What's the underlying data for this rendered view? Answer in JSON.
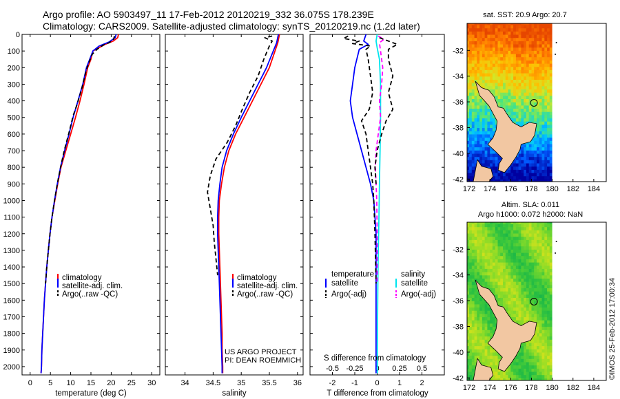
{
  "header": {
    "line1": "Argo profile: AO 5903497_11 17-Feb-2012 20120219_332 36.075S 178.239E",
    "line2": "Climatology: CARS2009. Satellite-adjusted climatology: synTS_20120219.nc (1.2d later)"
  },
  "side_credit": "©IMOS 25-Feb-2012 17:00:34",
  "colors": {
    "climatology": "#ff0000",
    "satellite": "#0000ff",
    "argo": "#000000",
    "sal_satellite": "#00e5ee",
    "sal_argo": "#ff00ff",
    "land": "#f2c7a2"
  },
  "chart_data": [
    {
      "type": "line",
      "panel": "temperature",
      "xlabel": "temperature (deg C)",
      "xlim": [
        -2,
        32
      ],
      "xticks": [
        0,
        5,
        10,
        15,
        20,
        25,
        30
      ],
      "ylim": [
        2050,
        0
      ],
      "yticks": [
        0,
        100,
        200,
        300,
        400,
        500,
        600,
        700,
        800,
        900,
        1000,
        1100,
        1200,
        1300,
        1400,
        1500,
        1600,
        1700,
        1800,
        1900,
        2000
      ],
      "legend": [
        "climatology",
        "satellite-adj. clim.",
        "Argo(..raw -QC)"
      ],
      "series": [
        {
          "name": "climatology",
          "color": "#ff0000",
          "dash": "",
          "points": [
            [
              21.8,
              0
            ],
            [
              21.6,
              20
            ],
            [
              20.5,
              40
            ],
            [
              18.5,
              60
            ],
            [
              17,
              80
            ],
            [
              15.5,
              100
            ],
            [
              15,
              150
            ],
            [
              14.2,
              200
            ],
            [
              13.3,
              300
            ],
            [
              12.3,
              400
            ],
            [
              11.2,
              500
            ],
            [
              10,
              600
            ],
            [
              8.8,
              700
            ],
            [
              7.6,
              800
            ],
            [
              6.8,
              900
            ],
            [
              6.1,
              1000
            ],
            [
              5.4,
              1100
            ],
            [
              4.9,
              1200
            ],
            [
              4.5,
              1300
            ],
            [
              4.1,
              1400
            ],
            [
              3.8,
              1500
            ],
            [
              3.5,
              1600
            ],
            [
              3.3,
              1700
            ],
            [
              3.1,
              1800
            ],
            [
              2.9,
              1900
            ],
            [
              2.8,
              2000
            ],
            [
              2.7,
              2040
            ]
          ]
        },
        {
          "name": "satellite-adj. clim.",
          "color": "#0000ff",
          "dash": "",
          "points": [
            [
              21.2,
              0
            ],
            [
              21,
              20
            ],
            [
              19.5,
              45
            ],
            [
              17,
              70
            ],
            [
              15.5,
              100
            ],
            [
              14.7,
              150
            ],
            [
              13.9,
              200
            ],
            [
              13,
              300
            ],
            [
              11.8,
              400
            ],
            [
              10.6,
              500
            ],
            [
              9.6,
              600
            ],
            [
              8.5,
              700
            ],
            [
              7.5,
              800
            ],
            [
              6.7,
              900
            ],
            [
              6,
              1000
            ],
            [
              5.4,
              1100
            ],
            [
              4.9,
              1200
            ],
            [
              4.5,
              1300
            ],
            [
              4.1,
              1400
            ],
            [
              3.8,
              1500
            ],
            [
              3.5,
              1600
            ],
            [
              3.3,
              1700
            ],
            [
              3.1,
              1800
            ],
            [
              2.9,
              1900
            ],
            [
              2.8,
              2000
            ],
            [
              2.7,
              2040
            ]
          ]
        },
        {
          "name": "Argo(..raw -QC)",
          "color": "#000000",
          "dash": "6,4",
          "points": [
            [
              20.8,
              10
            ],
            [
              20.6,
              30
            ],
            [
              19.5,
              50
            ],
            [
              18,
              65
            ],
            [
              16.5,
              90
            ],
            [
              15.3,
              120
            ],
            [
              14.5,
              170
            ],
            [
              13.8,
              220
            ],
            [
              12.8,
              320
            ],
            [
              11.6,
              420
            ],
            [
              10.6,
              490
            ],
            [
              10.3,
              520
            ],
            [
              9.5,
              600
            ],
            [
              8.4,
              700
            ],
            [
              7.5,
              800
            ],
            [
              6.7,
              900
            ],
            [
              6,
              1000
            ],
            [
              5.4,
              1100
            ],
            [
              4.9,
              1200
            ],
            [
              4.5,
              1300
            ],
            [
              4.1,
              1400
            ],
            [
              3.8,
              1500
            ]
          ]
        }
      ]
    },
    {
      "type": "line",
      "panel": "salinity",
      "xlabel": "salinity",
      "xlim": [
        33.65,
        36.1
      ],
      "xticks": [
        34,
        34.5,
        35,
        35.5,
        36
      ],
      "ylim": [
        2050,
        0
      ],
      "legend": [
        "climatology",
        "satellite-adj. clim.",
        "Argo(..raw -QC)"
      ],
      "annotation": [
        "US ARGO PROJECT",
        "PI: DEAN ROEMMICH"
      ],
      "series": [
        {
          "name": "climatology",
          "color": "#ff0000",
          "dash": "",
          "points": [
            [
              35.68,
              0
            ],
            [
              35.65,
              50
            ],
            [
              35.6,
              100
            ],
            [
              35.5,
              200
            ],
            [
              35.35,
              300
            ],
            [
              35.2,
              400
            ],
            [
              35.05,
              500
            ],
            [
              34.9,
              600
            ],
            [
              34.78,
              700
            ],
            [
              34.7,
              800
            ],
            [
              34.65,
              900
            ],
            [
              34.61,
              1000
            ],
            [
              34.6,
              1100
            ],
            [
              34.6,
              1200
            ],
            [
              34.61,
              1300
            ],
            [
              34.62,
              1400
            ],
            [
              34.63,
              1500
            ],
            [
              34.64,
              1600
            ],
            [
              34.65,
              1700
            ],
            [
              34.66,
              1800
            ],
            [
              34.66,
              1900
            ],
            [
              34.67,
              2000
            ],
            [
              34.67,
              2040
            ]
          ]
        },
        {
          "name": "satellite-adj. clim.",
          "color": "#0000ff",
          "dash": "",
          "points": [
            [
              35.66,
              0
            ],
            [
              35.63,
              50
            ],
            [
              35.57,
              100
            ],
            [
              35.45,
              200
            ],
            [
              35.3,
              300
            ],
            [
              35.15,
              400
            ],
            [
              35,
              500
            ],
            [
              34.86,
              600
            ],
            [
              34.74,
              700
            ],
            [
              34.66,
              800
            ],
            [
              34.62,
              900
            ],
            [
              34.59,
              1000
            ],
            [
              34.58,
              1100
            ],
            [
              34.58,
              1200
            ],
            [
              34.59,
              1300
            ],
            [
              34.6,
              1400
            ],
            [
              34.61,
              1500
            ],
            [
              34.62,
              1600
            ],
            [
              34.63,
              1700
            ],
            [
              34.64,
              1800
            ],
            [
              34.65,
              1900
            ],
            [
              34.66,
              2000
            ],
            [
              34.66,
              2040
            ]
          ]
        },
        {
          "name": "Argo(..raw -QC)",
          "color": "#000000",
          "dash": "6,4",
          "points": [
            [
              35.55,
              10
            ],
            [
              35.42,
              20
            ],
            [
              35.55,
              40
            ],
            [
              35.5,
              70
            ],
            [
              35.4,
              150
            ],
            [
              35.3,
              250
            ],
            [
              35.15,
              350
            ],
            [
              35.02,
              450
            ],
            [
              34.9,
              550
            ],
            [
              34.75,
              650
            ],
            [
              34.55,
              750
            ],
            [
              34.45,
              850
            ],
            [
              34.4,
              950
            ],
            [
              34.45,
              1050
            ],
            [
              34.5,
              1150
            ],
            [
              34.52,
              1250
            ],
            [
              34.55,
              1350
            ],
            [
              34.58,
              1450
            ]
          ]
        }
      ]
    },
    {
      "type": "line",
      "panel": "differences",
      "xlabel": "T difference from climatology",
      "xlabel_top": "S difference from climatology",
      "xlim": [
        -3,
        3
      ],
      "xticks": [
        -2,
        -1,
        0,
        1,
        2
      ],
      "xticklabels": [
        "-2",
        "-1",
        "0",
        "1",
        "2"
      ],
      "sticks": [
        -0.5,
        -0.25,
        0,
        0.25,
        0.5
      ],
      "sticklabels": [
        "-0.5",
        "-0.25",
        "0",
        "0.25",
        "0.5"
      ],
      "ylim": [
        2050,
        0
      ],
      "legend": {
        "temperature": [
          "satellite",
          "Argo(-adj)"
        ],
        "salinity": [
          "satellite",
          "Argo(-adj)"
        ],
        "headers": [
          "temperature",
          "salinity"
        ]
      },
      "series": [
        {
          "name": "satellite",
          "group": "temperature",
          "color": "#0000ff",
          "dash": "",
          "points": [
            [
              -0.5,
              0
            ],
            [
              -0.6,
              40
            ],
            [
              -0.4,
              60
            ],
            [
              -0.8,
              90
            ],
            [
              -1,
              200
            ],
            [
              -1.1,
              300
            ],
            [
              -1.2,
              400
            ],
            [
              -1.1,
              500
            ],
            [
              -0.9,
              600
            ],
            [
              -0.7,
              700
            ],
            [
              -0.5,
              800
            ],
            [
              -0.3,
              900
            ],
            [
              -0.15,
              1000
            ],
            [
              -0.1,
              1100
            ],
            [
              -0.05,
              1200
            ],
            [
              -0.05,
              1400
            ],
            [
              -0.05,
              1600
            ],
            [
              -0.05,
              1800
            ],
            [
              -0.05,
              2040
            ]
          ]
        },
        {
          "name": "Argo(-adj)",
          "group": "temperature",
          "color": "#000000",
          "dash": "6,4",
          "points": [
            [
              -1.3,
              10
            ],
            [
              -1.5,
              25
            ],
            [
              -0.8,
              40
            ],
            [
              -1.1,
              55
            ],
            [
              -0.3,
              70
            ],
            [
              -0.5,
              90
            ],
            [
              -0.4,
              150
            ],
            [
              -0.3,
              250
            ],
            [
              -0.2,
              350
            ],
            [
              -0.35,
              450
            ],
            [
              -0.7,
              520
            ],
            [
              -0.5,
              600
            ],
            [
              -0.4,
              700
            ],
            [
              -0.3,
              800
            ],
            [
              -0.2,
              900
            ],
            [
              -0.15,
              1000
            ],
            [
              -0.1,
              1200
            ],
            [
              -0.05,
              1500
            ]
          ]
        },
        {
          "name": "satellite",
          "group": "salinity",
          "color": "#00e5ee",
          "dash": "",
          "points": [
            [
              0,
              0
            ],
            [
              -0.05,
              40
            ],
            [
              0,
              80
            ],
            [
              0.1,
              150
            ],
            [
              0.15,
              300
            ],
            [
              0.15,
              500
            ],
            [
              0.13,
              700
            ],
            [
              0.1,
              900
            ],
            [
              0.08,
              1100
            ],
            [
              0.05,
              1300
            ],
            [
              0.03,
              1500
            ],
            [
              0.02,
              1700
            ],
            [
              0.01,
              1900
            ],
            [
              0.01,
              2040
            ]
          ]
        },
        {
          "name": "Argo(-adj)",
          "group": "salinity",
          "color": "#ff00ff",
          "dash": "6,4",
          "points": [
            [
              0.05,
              10
            ],
            [
              0.3,
              30
            ],
            [
              0.1,
              50
            ],
            [
              0.15,
              100
            ],
            [
              0.25,
              200
            ],
            [
              0.2,
              300
            ],
            [
              0.1,
              400
            ],
            [
              0.15,
              500
            ],
            [
              0.05,
              600
            ],
            [
              -0.05,
              700
            ],
            [
              -0.08,
              800
            ],
            [
              -0.05,
              900
            ],
            [
              -0.02,
              1000
            ],
            [
              0,
              1200
            ],
            [
              0,
              1500
            ]
          ]
        },
        {
          "name": "Argo(-adj) salinity black",
          "group": "salinity_raw",
          "color": "#000000",
          "dash": "6,4",
          "points": [
            [
              0.1,
              20
            ],
            [
              0.9,
              60
            ],
            [
              0.5,
              90
            ],
            [
              0.5,
              150
            ],
            [
              0.7,
              250
            ],
            [
              0.5,
              350
            ],
            [
              0.7,
              450
            ],
            [
              0.4,
              520
            ],
            [
              0.2,
              600
            ],
            [
              0,
              700
            ],
            [
              -0.1,
              800
            ],
            [
              -0.05,
              900
            ]
          ]
        }
      ]
    }
  ],
  "maps": [
    {
      "title": "sat. SST: 20.9 Argo: 20.7",
      "xticks": [
        172,
        174,
        176,
        178,
        180,
        182,
        184
      ],
      "yticks": [
        -32,
        -34,
        -36,
        -38,
        -40,
        -42
      ],
      "xlim": [
        171.8,
        185.2
      ],
      "ylim": [
        -42.2,
        -29.9
      ],
      "palette": "sst"
    },
    {
      "title_lines": [
        "Altim. SLA: 0.011",
        "Argo h1000: 0.072 h2000: NaN"
      ],
      "xticks": [
        172,
        174,
        176,
        178,
        180,
        182,
        184
      ],
      "yticks": [
        -32,
        -34,
        -36,
        -38,
        -40,
        -42
      ],
      "xlim": [
        171.8,
        185.2
      ],
      "ylim": [
        -42.2,
        -29.9
      ],
      "palette": "sla"
    }
  ],
  "argo_position": {
    "lon": 178.239,
    "lat": -36.075
  }
}
